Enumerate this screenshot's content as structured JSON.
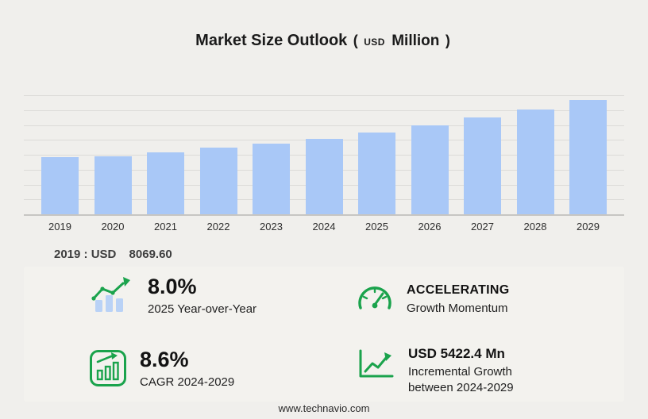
{
  "title": {
    "main": "Market Size Outlook",
    "paren_open": "(",
    "unit_small": "USD",
    "unit": "Million",
    "paren_close": ")"
  },
  "chart_data": {
    "type": "bar",
    "title": "Market Size Outlook (USD Million)",
    "xlabel": "",
    "ylabel": "USD Million",
    "categories": [
      "2019",
      "2020",
      "2021",
      "2022",
      "2023",
      "2024",
      "2025",
      "2026",
      "2027",
      "2028",
      "2029"
    ],
    "values": [
      8069.6,
      8160,
      8710,
      9300,
      9960,
      10618.3,
      11467.8,
      12455,
      13530,
      14700,
      16040.7
    ],
    "ylim": [
      0,
      16700
    ],
    "grid": true,
    "legend": false,
    "bar_color": "#a9c8f7",
    "notes": "2019 labeled USD 8069.60; values 2020-2028 estimated from bar heights; 2025 YoY 8.0%; CAGR 2024-2029 8.6%; incremental growth 2024-2029 USD 5422.4 Mn"
  },
  "annotation": {
    "label": "2019 : USD",
    "value": "8069.60"
  },
  "stats": [
    {
      "icon": "bar-chart-growth-icon",
      "value": "8.0%",
      "label": "2025 Year-over-Year"
    },
    {
      "icon": "speedometer-icon",
      "value": "ACCELERATING",
      "label": "Growth Momentum"
    },
    {
      "icon": "framed-bar-chart-icon",
      "value": "8.6%",
      "label": "CAGR 2024-2029"
    },
    {
      "icon": "trend-line-icon",
      "value": "USD 5422.4 Mn",
      "label": "Incremental Growth",
      "label2": "between 2024-2029"
    }
  ],
  "footer": "www.technavio.com",
  "colors": {
    "bar": "#a9c8f7",
    "accent_green": "#1aa34c",
    "text": "#1b1b1b",
    "background": "#f0efec"
  }
}
